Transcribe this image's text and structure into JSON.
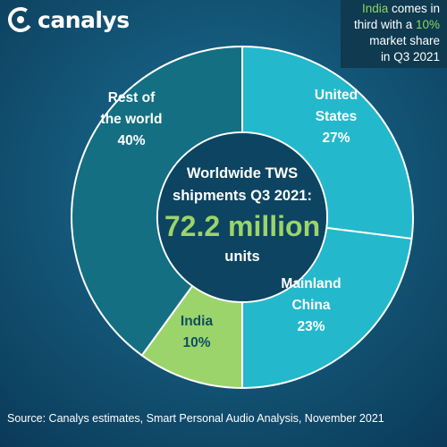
{
  "brand": {
    "name": "canalys",
    "logo_icon": "canalys-logo-icon"
  },
  "callout": {
    "line1_highlight": "India",
    "line1_rest": " comes in",
    "line2_pre": "third with a ",
    "line2_highlight": "10%",
    "line3": "market share",
    "line4": "in Q3 2021"
  },
  "center": {
    "title_line1": "Worldwide TWS",
    "title_line2": "shipments Q3 2021:",
    "value": "72.2 million",
    "unit": "units"
  },
  "source": "Source: Canalys estimates, Smart Personal Audio Analysis, November 2021",
  "colors": {
    "teal": "#24b8cc",
    "india_green": "#9bd46b",
    "rest": "#146f82",
    "value_green": "#9bd46b",
    "center_bg": "#0d4461"
  },
  "chart_data": {
    "type": "pie",
    "donut": true,
    "title": "Worldwide TWS shipments Q3 2021: 72.2 million units",
    "slices": [
      {
        "label": "United States",
        "label_lines": [
          "United",
          "States"
        ],
        "value": 27,
        "value_label": "27%",
        "color": "#24b8cc"
      },
      {
        "label": "Mainland China",
        "label_lines": [
          "Mainland",
          "China"
        ],
        "value": 23,
        "value_label": "23%",
        "color": "#24b8cc"
      },
      {
        "label": "India",
        "label_lines": [
          "India"
        ],
        "value": 10,
        "value_label": "10%",
        "color": "#9bd46b"
      },
      {
        "label": "Rest of the world",
        "label_lines": [
          "Rest of",
          "the world"
        ],
        "value": 40,
        "value_label": "40%",
        "color": "#146f82"
      }
    ]
  }
}
